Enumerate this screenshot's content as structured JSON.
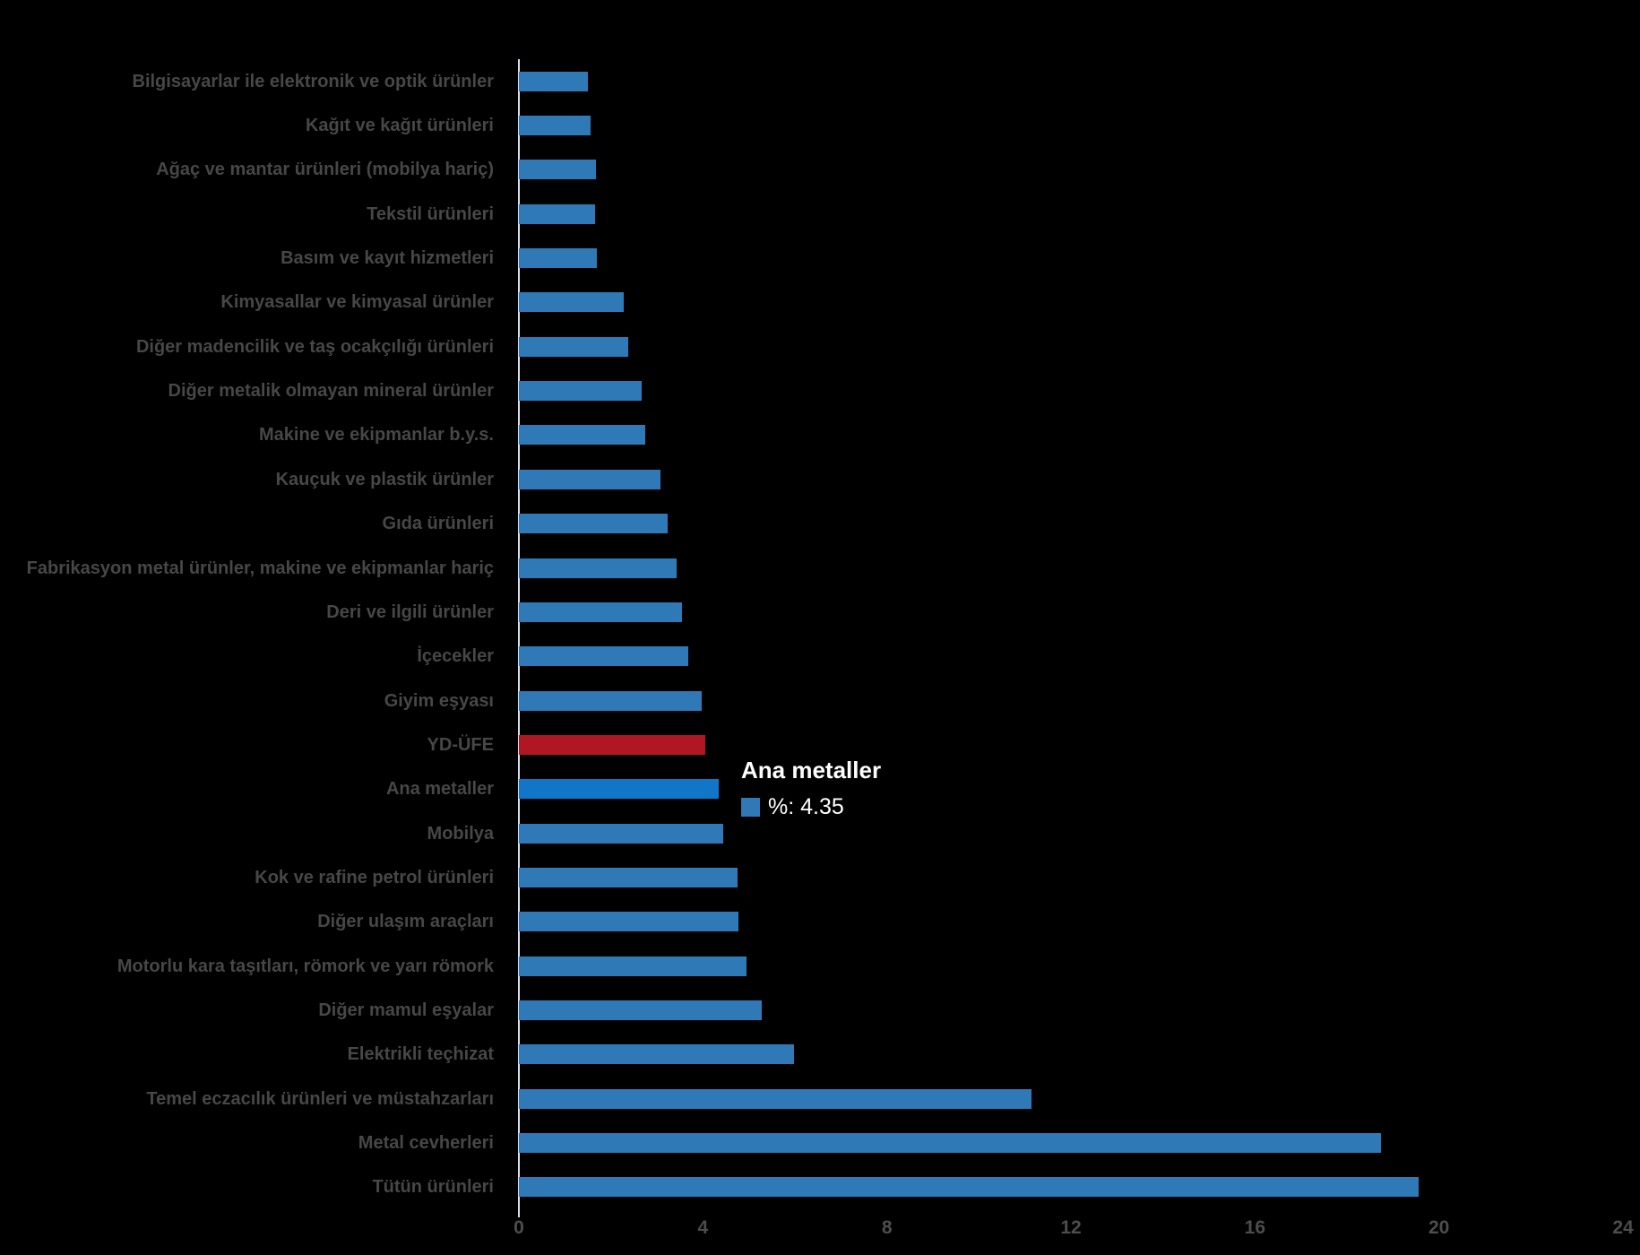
{
  "colors": {
    "background": "#000000",
    "bar_default": "#2E79B6",
    "bar_index": "#B01722",
    "bar_highlight": "#1175C8",
    "axis_line": "#D7E1ED",
    "label_text": "#474747",
    "tick_text": "#4D4D4D",
    "tooltip_text": "#FFFFFF"
  },
  "tooltip": {
    "title": "Ana metaller",
    "value_text": "%: 4.35",
    "swatch_color": "#2E79B6"
  },
  "chart_data": {
    "type": "bar",
    "orientation": "horizontal",
    "title": "",
    "xlabel": "",
    "ylabel": "",
    "grid": false,
    "legend_position": "none",
    "x_axis": {
      "min": 0,
      "max": 24,
      "ticks": [
        "0",
        "4",
        "8",
        "12",
        "16",
        "20",
        "24"
      ]
    },
    "series_name": "%",
    "bars": [
      {
        "label": "Bilgisayarlar ile elektronik ve optik ürünler",
        "value": 1.5,
        "role": "default"
      },
      {
        "label": "Kağıt ve kağıt ürünleri",
        "value": 1.56,
        "role": "default"
      },
      {
        "label": "Ağaç ve mantar ürünleri (mobilya hariç)",
        "value": 1.67,
        "role": "default"
      },
      {
        "label": "Tekstil ürünleri",
        "value": 1.66,
        "role": "default"
      },
      {
        "label": "Basım ve kayıt hizmetleri",
        "value": 1.69,
        "role": "default"
      },
      {
        "label": "Kimyasallar ve kimyasal ürünler",
        "value": 2.28,
        "role": "default"
      },
      {
        "label": "Diğer madencilik ve taş ocakçılığı ürünleri",
        "value": 2.38,
        "role": "default"
      },
      {
        "label": "Diğer metalik olmayan mineral ürünler",
        "value": 2.67,
        "role": "default"
      },
      {
        "label": "Makine ve ekipmanlar b.y.s.",
        "value": 2.74,
        "role": "default"
      },
      {
        "label": "Kauçuk ve plastik ürünler",
        "value": 3.08,
        "role": "default"
      },
      {
        "label": "Gıda ürünleri",
        "value": 3.23,
        "role": "default"
      },
      {
        "label": "Fabrikasyon metal ürünler, makine ve ekipmanlar hariç",
        "value": 3.42,
        "role": "default"
      },
      {
        "label": "Deri ve ilgili ürünler",
        "value": 3.55,
        "role": "default"
      },
      {
        "label": "İçecekler",
        "value": 3.69,
        "role": "default"
      },
      {
        "label": "Giyim eşyası",
        "value": 3.97,
        "role": "default"
      },
      {
        "label": "YD-ÜFE",
        "value": 4.05,
        "role": "index"
      },
      {
        "label": "Ana metaller",
        "value": 4.35,
        "role": "highlight"
      },
      {
        "label": "Mobilya",
        "value": 4.45,
        "role": "default"
      },
      {
        "label": "Kok ve rafine petrol ürünleri",
        "value": 4.75,
        "role": "default"
      },
      {
        "label": "Diğer ulaşım araçları",
        "value": 4.78,
        "role": "default"
      },
      {
        "label": "Motorlu kara taşıtları, römork ve yarı römork",
        "value": 4.95,
        "role": "default"
      },
      {
        "label": "Diğer mamul eşyalar",
        "value": 5.27,
        "role": "default"
      },
      {
        "label": "Elektrikli teçhizat",
        "value": 5.98,
        "role": "default"
      },
      {
        "label": "Temel eczacılık ürünleri ve müstahzarları",
        "value": 11.15,
        "role": "default"
      },
      {
        "label": "Metal cevherleri",
        "value": 18.74,
        "role": "default"
      },
      {
        "label": "Tütün ürünleri",
        "value": 19.56,
        "role": "default"
      }
    ]
  }
}
